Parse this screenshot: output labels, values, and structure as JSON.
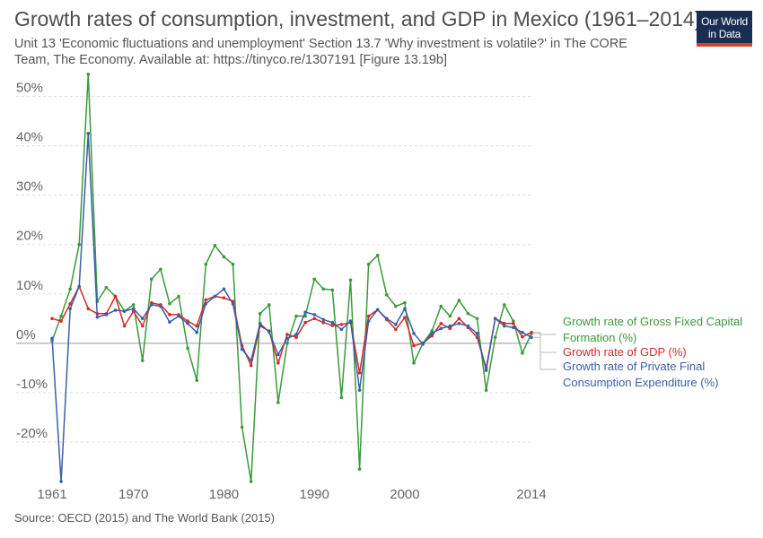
{
  "title": "Growth rates of consumption, investment, and GDP in Mexico (1961–2014)",
  "subtitle": "Unit 13 'Economic fluctuations and unemployment' Section 13.7 'Why investment is volatile?' in The CORE Team, The Economy. Available at: https://tinyco.re/1307191 [Figure 13.19b]",
  "logo": {
    "line1": "Our World",
    "line2": "in Data",
    "bg_color": "#1a2d52",
    "accent_color": "#d9412c"
  },
  "source": "Source: OECD (2015) and The World Bank (2015)",
  "chart_data": {
    "type": "line",
    "xlim": [
      1961,
      2014
    ],
    "ylim": [
      -28,
      55
    ],
    "x_tick_values": [
      1961,
      1970,
      1980,
      1990,
      2000,
      2014
    ],
    "x_tick_labels": [
      "1961",
      "1970",
      "1980",
      "1990",
      "2000",
      "2014"
    ],
    "y_tick_values": [
      -20,
      -10,
      0,
      10,
      20,
      30,
      40,
      50
    ],
    "y_tick_labels": [
      "-20%",
      "-10%",
      "0%",
      "10%",
      "20%",
      "30%",
      "40%",
      "50%"
    ],
    "grid": "horizontal dotted",
    "legend_position": "right, end-of-line labels",
    "x": [
      1961,
      1962,
      1963,
      1964,
      1965,
      1966,
      1967,
      1968,
      1969,
      1970,
      1971,
      1972,
      1973,
      1974,
      1975,
      1976,
      1977,
      1978,
      1979,
      1980,
      1981,
      1982,
      1983,
      1984,
      1985,
      1986,
      1987,
      1988,
      1989,
      1990,
      1991,
      1992,
      1993,
      1994,
      1995,
      1996,
      1997,
      1998,
      1999,
      2000,
      2001,
      2002,
      2003,
      2004,
      2005,
      2006,
      2007,
      2008,
      2009,
      2010,
      2011,
      2012,
      2013,
      2014
    ],
    "series": [
      {
        "name": "Growth rate of Gross Fixed Capital Formation (%)",
        "color": "#3a9a3a",
        "values": [
          0.5,
          5.5,
          11,
          20,
          54.5,
          8.5,
          11.3,
          9.5,
          6.5,
          7.8,
          -3.5,
          13,
          15,
          8,
          9.5,
          -1,
          -7.5,
          16,
          19.8,
          17.5,
          16,
          -17,
          -28,
          6,
          7.8,
          -12,
          0,
          5.5,
          5.5,
          13,
          11,
          10.8,
          -11,
          12.8,
          -25.5,
          16,
          17.8,
          9.8,
          7.5,
          8.2,
          -4,
          0,
          2.5,
          7.5,
          5.5,
          8.7,
          6,
          5,
          -9.5,
          1.2,
          7.8,
          4.5,
          -2,
          2
        ]
      },
      {
        "name": "Growth rate of GDP (%)",
        "color": "#d42a2a",
        "values": [
          5,
          4.5,
          8,
          11.5,
          7,
          6,
          6,
          9.5,
          3.5,
          6.5,
          3.5,
          8.2,
          7.8,
          5.8,
          5.8,
          4.5,
          3.5,
          8.8,
          9.5,
          9.2,
          8.5,
          -0.5,
          -4.5,
          3.5,
          2.5,
          -4,
          1.8,
          1.2,
          4.2,
          5,
          4.2,
          3.6,
          3.8,
          4.2,
          -6,
          5.5,
          6.8,
          4.8,
          2.8,
          5.2,
          -0.5,
          0,
          1.5,
          4,
          3,
          5,
          3.2,
          1.2,
          -5,
          5,
          4,
          4,
          1.3,
          2.2
        ]
      },
      {
        "name": "Growth rate of Private Final Consumption Expenditure (%)",
        "color": "#3a5fa8",
        "values": [
          1,
          -28,
          7,
          11.5,
          42.5,
          5.3,
          5.8,
          6.7,
          6.5,
          7,
          5,
          7.8,
          7.5,
          4.3,
          5.5,
          4,
          2.2,
          8,
          9.5,
          11,
          8,
          -1.2,
          -3.5,
          4,
          2.3,
          -2.3,
          1,
          1.8,
          6.3,
          5.8,
          4.8,
          4.2,
          2.8,
          4.5,
          -9.5,
          4.5,
          6.8,
          5,
          3.8,
          7,
          2,
          -0.2,
          2,
          3,
          3.5,
          4,
          3.5,
          2,
          -5.5,
          5,
          3.5,
          3.2,
          2.2,
          1.2
        ]
      }
    ]
  }
}
